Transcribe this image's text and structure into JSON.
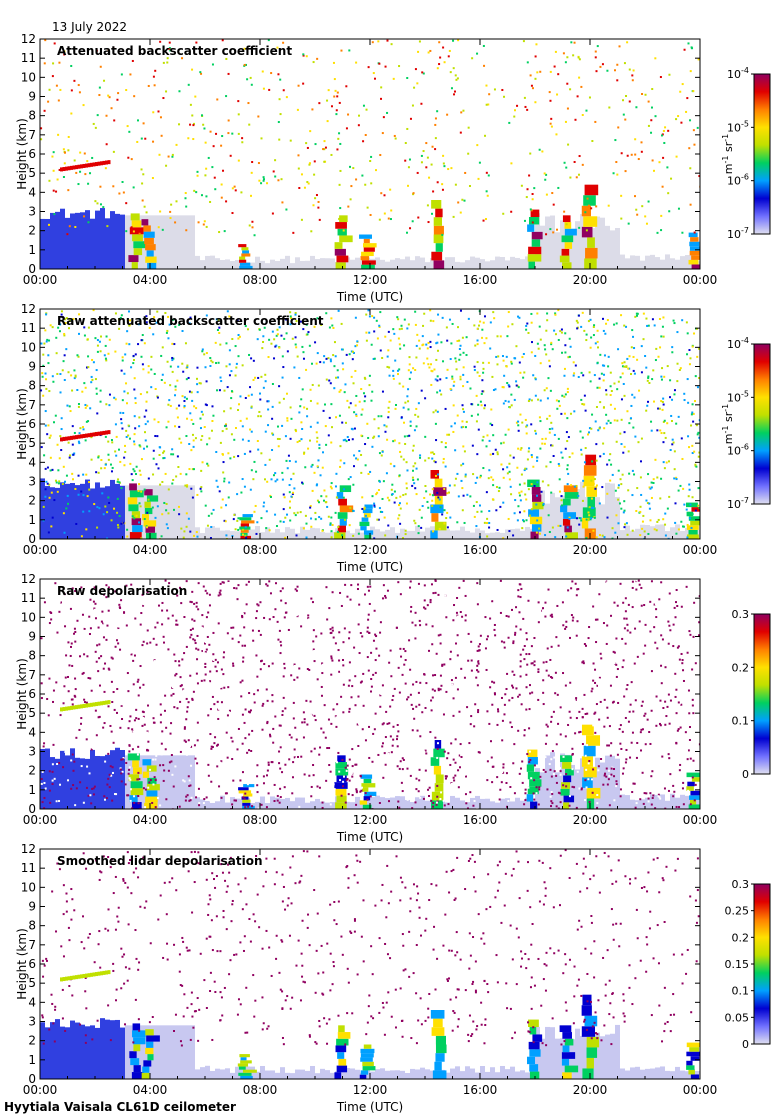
{
  "header": {
    "date": "13 July 2022"
  },
  "footer": {
    "instrument": "Hyytiala Vaisala CL61D ceilometer"
  },
  "colors": {
    "colormap": [
      "#e0e0f0",
      "#7070ff",
      "#0000d0",
      "#00a0ff",
      "#00d060",
      "#c0e000",
      "#ffe000",
      "#ff8000",
      "#e00000",
      "#900060"
    ]
  },
  "chart_data": [
    {
      "type": "heatmap",
      "title": "Attenuated backscatter coefficient",
      "xlabel": "Time (UTC)",
      "ylabel": "Height (km)",
      "x_ticks": [
        "00:00",
        "04:00",
        "08:00",
        "12:00",
        "16:00",
        "20:00",
        "00:00"
      ],
      "xlim": [
        0,
        24
      ],
      "y_ticks": [
        "0",
        "1",
        "2",
        "3",
        "4",
        "5",
        "6",
        "7",
        "8",
        "9",
        "10",
        "11",
        "12"
      ],
      "ylim": [
        0,
        12
      ],
      "colorbar": {
        "scale": "log",
        "range": [
          1e-07,
          0.0001
        ],
        "tick_labels": [
          {
            "base": "10",
            "exp": "-4"
          },
          {
            "base": "10",
            "exp": "-5"
          },
          {
            "base": "10",
            "exp": "-6"
          },
          {
            "base": "10",
            "exp": "-7"
          }
        ],
        "unit_main": "m",
        "unit_exp1": "-1",
        "unit_mid": " sr",
        "unit_exp2": "-1"
      },
      "grid": false
    },
    {
      "type": "heatmap",
      "title": "Raw attenuated backscatter coefficient",
      "xlabel": "Time (UTC)",
      "ylabel": "Height (km)",
      "x_ticks": [
        "00:00",
        "04:00",
        "08:00",
        "12:00",
        "16:00",
        "20:00",
        "00:00"
      ],
      "xlim": [
        0,
        24
      ],
      "y_ticks": [
        "0",
        "1",
        "2",
        "3",
        "4",
        "5",
        "6",
        "7",
        "8",
        "9",
        "10",
        "11",
        "12"
      ],
      "ylim": [
        0,
        12
      ],
      "colorbar": {
        "scale": "log",
        "range": [
          1e-07,
          0.0001
        ],
        "tick_labels": [
          {
            "base": "10",
            "exp": "-4"
          },
          {
            "base": "10",
            "exp": "-5"
          },
          {
            "base": "10",
            "exp": "-6"
          },
          {
            "base": "10",
            "exp": "-7"
          }
        ],
        "unit_main": "m",
        "unit_exp1": "-1",
        "unit_mid": " sr",
        "unit_exp2": "-1"
      },
      "grid": false
    },
    {
      "type": "heatmap",
      "title": "Raw depolarisation",
      "xlabel": "Time (UTC)",
      "ylabel": "Height (km)",
      "x_ticks": [
        "00:00",
        "04:00",
        "08:00",
        "12:00",
        "16:00",
        "20:00",
        "00:00"
      ],
      "xlim": [
        0,
        24
      ],
      "y_ticks": [
        "0",
        "1",
        "2",
        "3",
        "4",
        "5",
        "6",
        "7",
        "8",
        "9",
        "10",
        "11",
        "12"
      ],
      "ylim": [
        0,
        12
      ],
      "colorbar": {
        "scale": "linear",
        "range": [
          0,
          0.3
        ],
        "tick_labels": [
          {
            "base": "0.3"
          },
          {
            "base": "0.2"
          },
          {
            "base": "0.1"
          },
          {
            "base": "0"
          }
        ]
      },
      "grid": false
    },
    {
      "type": "heatmap",
      "title": "Smoothed lidar depolarisation",
      "xlabel": "Time (UTC)",
      "ylabel": "Height (km)",
      "x_ticks": [
        "00:00",
        "04:00",
        "08:00",
        "12:00",
        "16:00",
        "20:00",
        "00:00"
      ],
      "xlim": [
        0,
        24
      ],
      "y_ticks": [
        "0",
        "1",
        "2",
        "3",
        "4",
        "5",
        "6",
        "7",
        "8",
        "9",
        "10",
        "11",
        "12"
      ],
      "ylim": [
        0,
        12
      ],
      "colorbar": {
        "scale": "linear",
        "range": [
          0,
          0.3
        ],
        "tick_labels": [
          {
            "base": "0.3"
          },
          {
            "base": "0.25"
          },
          {
            "base": "0.2"
          },
          {
            "base": "0.15"
          },
          {
            "base": "0.1"
          },
          {
            "base": "0.05"
          },
          {
            "base": "0"
          }
        ]
      },
      "grid": false
    }
  ]
}
